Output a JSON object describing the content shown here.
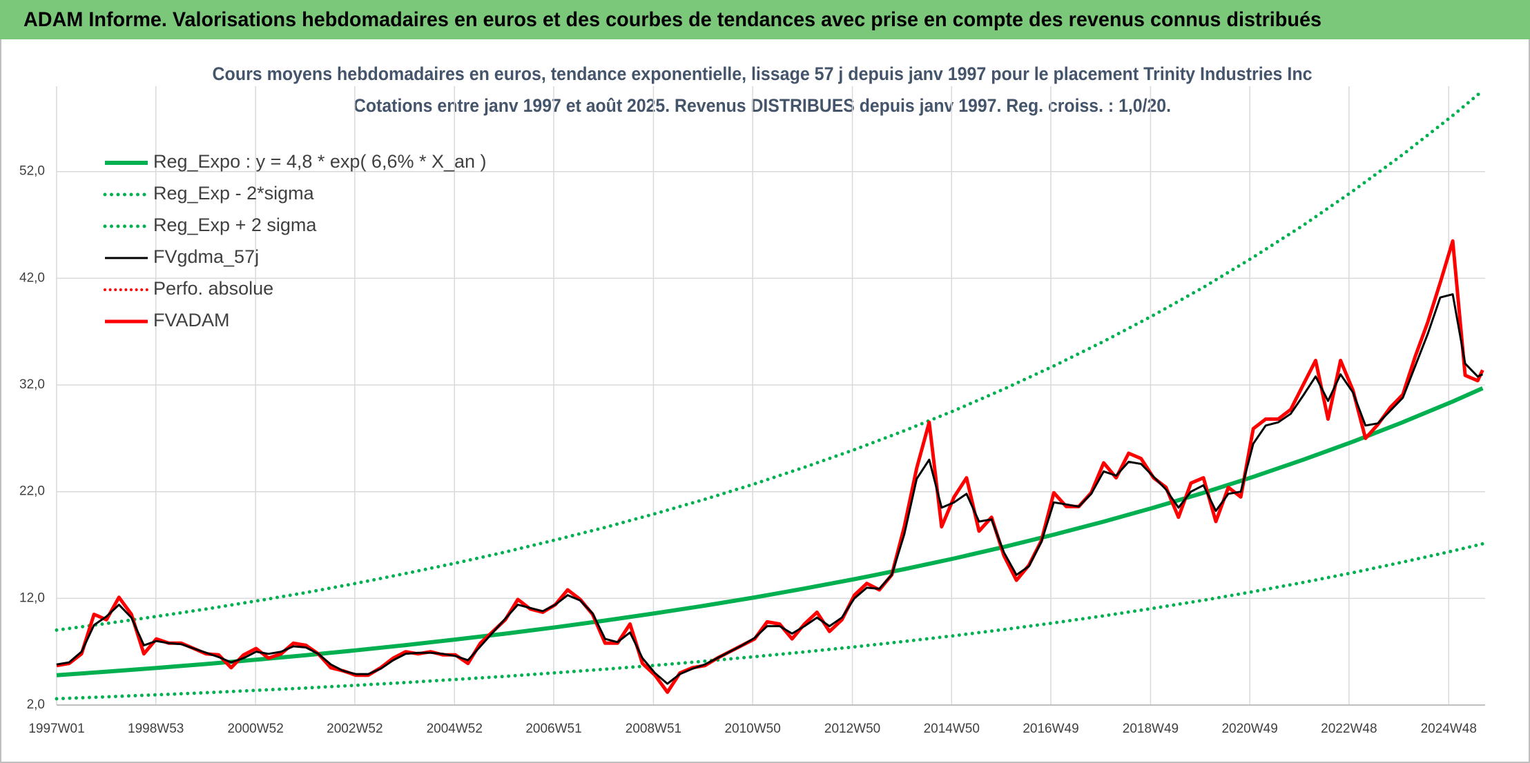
{
  "header": {
    "title": "ADAM Informe. Valorisations hebdomadaires en euros et des courbes de tendances avec prise en compte des revenus connus distribués"
  },
  "chart_data": {
    "type": "line",
    "title": "Cours moyens hebdomadaires en euros, tendance exponentielle, lissage 57 j depuis janv 1997 pour le placement Trinity Industries Inc",
    "subtitle": "Cotations entre janv 1997 et août 2025. Revenus DISTRIBUES depuis janv 1997. Reg. croiss. : 1,0/20.",
    "legend": "upper left",
    "grid": true,
    "xlim": [
      1997,
      2025.65
    ],
    "xticks": [
      {
        "value": 1997,
        "label": "1997W01"
      },
      {
        "value": 1998.99,
        "label": "1998W53"
      },
      {
        "value": 2000.99,
        "label": "2000W52"
      },
      {
        "value": 2002.98,
        "label": "2002W52"
      },
      {
        "value": 2004.98,
        "label": "2004W52"
      },
      {
        "value": 2006.97,
        "label": "2006W51"
      },
      {
        "value": 2008.97,
        "label": "2008W51"
      },
      {
        "value": 2010.96,
        "label": "2010W50"
      },
      {
        "value": 2012.96,
        "label": "2012W50"
      },
      {
        "value": 2014.95,
        "label": "2014W50"
      },
      {
        "value": 2016.94,
        "label": "2016W49"
      },
      {
        "value": 2018.94,
        "label": "2018W49"
      },
      {
        "value": 2020.93,
        "label": "2020W49"
      },
      {
        "value": 2022.92,
        "label": "2022W48"
      },
      {
        "value": 2024.92,
        "label": "2024W48"
      }
    ],
    "ylim": [
      2,
      60
    ],
    "yticks": [
      {
        "value": 2,
        "label": "2,0"
      },
      {
        "value": 12,
        "label": "12,0"
      },
      {
        "value": 22,
        "label": "22,0"
      },
      {
        "value": 32,
        "label": "32,0"
      },
      {
        "value": 42,
        "label": "42,0"
      },
      {
        "value": 52,
        "label": "52,0"
      }
    ],
    "series": [
      {
        "name": "Reg_Expo : y = 4,8 * exp( 6,6% *  X_an )",
        "color": "#00b050",
        "style": "solid",
        "width": 6,
        "x": [
          1997,
          1998,
          1999,
          2000,
          2001,
          2002,
          2003,
          2004,
          2005,
          2006,
          2007,
          2008,
          2009,
          2010,
          2011,
          2012,
          2013,
          2014,
          2015,
          2016,
          2017,
          2018,
          2019,
          2020,
          2021,
          2022,
          2023,
          2024,
          2025,
          2025.6
        ],
        "values": [
          4.8,
          5.13,
          5.48,
          5.85,
          6.25,
          6.67,
          7.13,
          7.62,
          8.14,
          8.69,
          9.29,
          9.92,
          10.6,
          11.32,
          12.09,
          12.92,
          13.8,
          14.74,
          15.74,
          16.82,
          17.97,
          19.19,
          20.5,
          21.89,
          23.39,
          24.99,
          26.69,
          28.51,
          30.45,
          31.69
        ]
      },
      {
        "name": "Reg_Exp - 2*sigma",
        "color": "#00b050",
        "style": "dotted",
        "width": 5,
        "x": [
          1997,
          1998,
          1999,
          2000,
          2001,
          2002,
          2003,
          2004,
          2005,
          2006,
          2007,
          2008,
          2009,
          2010,
          2011,
          2012,
          2013,
          2014,
          2015,
          2016,
          2017,
          2018,
          2019,
          2020,
          2021,
          2022,
          2023,
          2024,
          2025,
          2025.6
        ],
        "values": [
          2.59,
          2.77,
          2.96,
          3.16,
          3.38,
          3.6,
          3.85,
          4.11,
          4.4,
          4.69,
          5.02,
          5.36,
          5.72,
          6.11,
          6.53,
          6.98,
          7.45,
          7.96,
          8.5,
          9.08,
          9.7,
          10.36,
          11.07,
          11.82,
          12.63,
          13.49,
          14.41,
          15.4,
          16.44,
          17.11
        ]
      },
      {
        "name": "Reg_Exp + 2 sigma",
        "color": "#00b050",
        "style": "dotted",
        "width": 5,
        "x": [
          1997,
          1998,
          1999,
          2000,
          2001,
          2002,
          2003,
          2004,
          2005,
          2006,
          2007,
          2008,
          2009,
          2010,
          2011,
          2012,
          2013,
          2014,
          2015,
          2016,
          2017,
          2018,
          2019,
          2020,
          2021,
          2022,
          2023,
          2024,
          2025,
          2025.6
        ],
        "values": [
          9.02,
          9.64,
          10.3,
          11.0,
          11.75,
          12.54,
          13.4,
          14.33,
          15.3,
          16.34,
          17.47,
          18.65,
          19.93,
          21.28,
          22.73,
          24.29,
          25.94,
          27.71,
          29.59,
          31.62,
          33.78,
          36.08,
          38.54,
          41.15,
          43.97,
          46.96,
          50.18,
          53.6,
          57.25,
          59.58
        ]
      },
      {
        "name": "FVgdma_57j",
        "color": "#000000",
        "style": "solid",
        "width": 3,
        "layer": 2,
        "x": [
          1997,
          1997.25,
          1997.5,
          1997.75,
          1998,
          1998.25,
          1998.5,
          1998.75,
          1999,
          1999.25,
          1999.5,
          1999.75,
          2000,
          2000.25,
          2000.5,
          2000.75,
          2001,
          2001.25,
          2001.5,
          2001.75,
          2002,
          2002.25,
          2002.5,
          2002.75,
          2003,
          2003.25,
          2003.5,
          2003.75,
          2004,
          2004.25,
          2004.5,
          2004.75,
          2005,
          2005.25,
          2005.5,
          2005.75,
          2006,
          2006.25,
          2006.5,
          2006.75,
          2007,
          2007.25,
          2007.5,
          2007.75,
          2008,
          2008.25,
          2008.5,
          2008.75,
          2009,
          2009.25,
          2009.5,
          2009.75,
          2010,
          2010.25,
          2010.5,
          2010.75,
          2011,
          2011.25,
          2011.5,
          2011.75,
          2012,
          2012.25,
          2012.5,
          2012.75,
          2013,
          2013.25,
          2013.5,
          2013.75,
          2014,
          2014.25,
          2014.5,
          2014.75,
          2015,
          2015.25,
          2015.5,
          2015.75,
          2016,
          2016.25,
          2016.5,
          2016.75,
          2017,
          2017.25,
          2017.5,
          2017.75,
          2018,
          2018.25,
          2018.5,
          2018.75,
          2019,
          2019.25,
          2019.5,
          2019.75,
          2020,
          2020.25,
          2020.5,
          2020.75,
          2021,
          2021.25,
          2021.5,
          2021.75,
          2022,
          2022.25,
          2022.5,
          2022.75,
          2023,
          2023.25,
          2023.5,
          2023.75,
          2024,
          2024.25,
          2024.5,
          2024.75,
          2025,
          2025.25,
          2025.5,
          2025.6
        ],
        "values": [
          5.8,
          6.0,
          7.0,
          9.5,
          10.3,
          11.4,
          10.2,
          7.6,
          8.0,
          7.8,
          7.7,
          7.3,
          6.9,
          6.5,
          6.0,
          6.4,
          7.0,
          6.8,
          7.0,
          7.5,
          7.4,
          6.8,
          5.8,
          5.2,
          4.9,
          4.9,
          5.4,
          6.2,
          6.8,
          6.9,
          6.9,
          6.8,
          6.6,
          6.2,
          7.5,
          8.8,
          10.1,
          11.4,
          11.1,
          10.8,
          11.4,
          12.3,
          11.8,
          10.6,
          8.2,
          7.9,
          8.8,
          6.4,
          5.0,
          4.0,
          4.9,
          5.4,
          5.8,
          6.4,
          7.0,
          7.6,
          8.3,
          9.4,
          9.4,
          8.7,
          9.4,
          10.2,
          9.4,
          10.2,
          12.0,
          13.0,
          12.9,
          14.2,
          18.0,
          23.2,
          25.0,
          20.5,
          21.0,
          21.8,
          19.2,
          19.4,
          16.3,
          14.2,
          15.0,
          17.3,
          21.0,
          20.8,
          20.6,
          21.8,
          23.9,
          23.5,
          24.8,
          24.6,
          23.4,
          22.2,
          20.5,
          22.0,
          22.6,
          20.2,
          21.8,
          22.0,
          26.5,
          28.2,
          28.5,
          29.3,
          31.0,
          32.8,
          30.5,
          33.0,
          31.3,
          28.2,
          28.4,
          29.6,
          30.8,
          33.8,
          36.8,
          40.2,
          40.5,
          34.0,
          32.8,
          33.0
        ]
      },
      {
        "name": "Perfo. absolue",
        "color": "#ff0000",
        "style": "dotted",
        "width": 4
      },
      {
        "name": "FVADAM",
        "color": "#ff0000",
        "style": "solid",
        "width": 5,
        "layer": 1,
        "x": [
          1997,
          1997.25,
          1997.5,
          1997.75,
          1998,
          1998.25,
          1998.5,
          1998.75,
          1999,
          1999.25,
          1999.5,
          1999.75,
          2000,
          2000.25,
          2000.5,
          2000.75,
          2001,
          2001.25,
          2001.5,
          2001.75,
          2002,
          2002.25,
          2002.5,
          2002.75,
          2003,
          2003.25,
          2003.5,
          2003.75,
          2004,
          2004.25,
          2004.5,
          2004.75,
          2005,
          2005.25,
          2005.5,
          2005.75,
          2006,
          2006.25,
          2006.5,
          2006.75,
          2007,
          2007.25,
          2007.5,
          2007.75,
          2008,
          2008.25,
          2008.5,
          2008.75,
          2009,
          2009.25,
          2009.5,
          2009.75,
          2010,
          2010.25,
          2010.5,
          2010.75,
          2011,
          2011.25,
          2011.5,
          2011.75,
          2012,
          2012.25,
          2012.5,
          2012.75,
          2013,
          2013.25,
          2013.5,
          2013.75,
          2014,
          2014.25,
          2014.5,
          2014.75,
          2015,
          2015.25,
          2015.5,
          2015.75,
          2016,
          2016.25,
          2016.5,
          2016.75,
          2017,
          2017.25,
          2017.5,
          2017.75,
          2018,
          2018.25,
          2018.5,
          2018.75,
          2019,
          2019.25,
          2019.5,
          2019.75,
          2020,
          2020.25,
          2020.5,
          2020.75,
          2021,
          2021.25,
          2021.5,
          2021.75,
          2022,
          2022.25,
          2022.5,
          2022.75,
          2023,
          2023.25,
          2023.5,
          2023.75,
          2024,
          2024.25,
          2024.5,
          2024.75,
          2025,
          2025.25,
          2025.5,
          2025.6
        ],
        "values": [
          5.7,
          5.9,
          6.8,
          10.5,
          10.0,
          12.1,
          10.5,
          6.8,
          8.2,
          7.8,
          7.8,
          7.3,
          6.8,
          6.7,
          5.5,
          6.7,
          7.3,
          6.4,
          6.8,
          7.8,
          7.6,
          6.8,
          5.5,
          5.2,
          4.8,
          4.8,
          5.5,
          6.4,
          7.0,
          6.8,
          7.0,
          6.7,
          6.7,
          5.9,
          7.8,
          8.9,
          10.0,
          11.9,
          11.0,
          10.7,
          11.4,
          12.8,
          11.9,
          10.5,
          7.8,
          7.8,
          9.6,
          5.9,
          4.8,
          3.2,
          5.0,
          5.5,
          5.7,
          6.4,
          7.0,
          7.6,
          8.2,
          9.8,
          9.6,
          8.2,
          9.6,
          10.7,
          8.9,
          10.0,
          12.3,
          13.4,
          12.8,
          14.2,
          18.7,
          24.2,
          28.5,
          18.7,
          21.5,
          23.3,
          18.3,
          19.6,
          16.0,
          13.7,
          15.1,
          17.4,
          21.9,
          20.6,
          20.6,
          21.9,
          24.7,
          23.3,
          25.6,
          25.1,
          23.3,
          22.4,
          19.6,
          22.8,
          23.3,
          19.2,
          22.4,
          21.5,
          27.9,
          28.8,
          28.8,
          29.7,
          32.0,
          34.3,
          28.8,
          34.3,
          31.5,
          27.0,
          28.3,
          29.9,
          31.1,
          34.7,
          37.9,
          41.6,
          45.5,
          32.9,
          32.4,
          33.4
        ]
      }
    ]
  }
}
